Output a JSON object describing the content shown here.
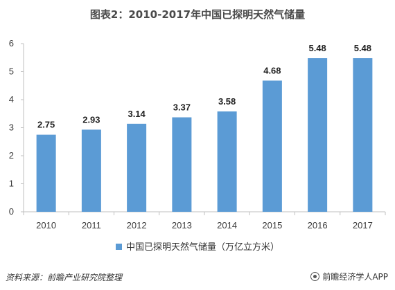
{
  "chart_data": {
    "type": "bar",
    "title": "图表2：2010-2017年中国已探明天然气储量",
    "categories": [
      "2010",
      "2011",
      "2012",
      "2013",
      "2014",
      "2015",
      "2016",
      "2017"
    ],
    "series": [
      {
        "name": "中国已探明天然气储量（万亿立方米）",
        "values": [
          2.75,
          2.93,
          3.14,
          3.37,
          3.58,
          4.68,
          5.48,
          5.48
        ]
      }
    ],
    "data_labels": [
      "2.75",
      "2.93",
      "3.14",
      "3.37",
      "3.58",
      "4.68",
      "5.48",
      "5.48"
    ],
    "y_ticks": [
      "0",
      "1",
      "2",
      "3",
      "4",
      "5",
      "6"
    ],
    "ylim": [
      0,
      6
    ],
    "xlabel": "",
    "ylabel": "",
    "grid": false,
    "legend_position": "bottom",
    "bar_color": "#5b9bd5"
  },
  "footer": {
    "source": "资料来源：前瞻产业研究院整理",
    "brand": "前瞻经济学人APP"
  }
}
